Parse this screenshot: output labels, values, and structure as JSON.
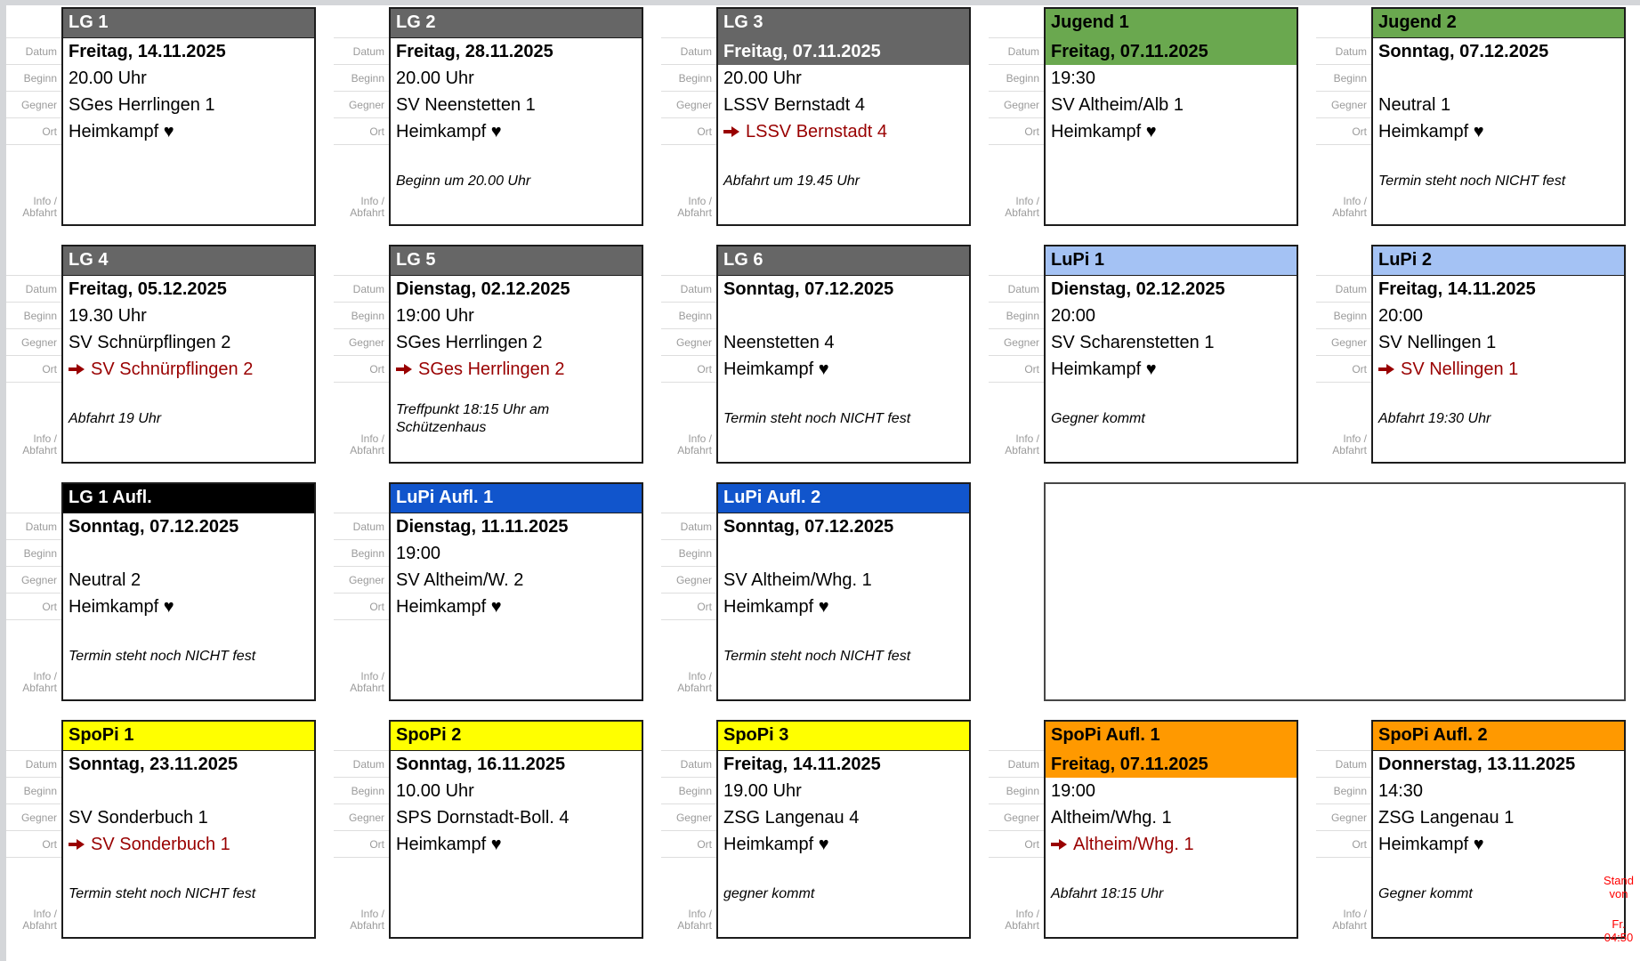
{
  "labels": {
    "datum": "Datum",
    "beginn": "Beginn",
    "gegner": "Gegner",
    "ort": "Ort",
    "info_line1": "Info /",
    "info_line2": "Abfahrt"
  },
  "icons": {
    "away_arrow": "➔",
    "home_heart": "♥"
  },
  "colors": {
    "lg_header": "#666666",
    "jugend_header": "#6aa84f",
    "lupi_header": "#a4c2f4",
    "lg_aufl_header": "#000000",
    "lupi_aufl_header": "#1155cc",
    "spopi_header": "#ffff00",
    "spopi_aufl_header": "#ff9900",
    "away_text": "#990000",
    "stand_note": "#ff0000"
  },
  "footer": {
    "stand_line": "Stand von",
    "day": "Fr.",
    "time": "04:50"
  },
  "cards": [
    {
      "row": 1,
      "col": 1,
      "team": "LG 1",
      "header_bg": "#666666",
      "header_color": "#ffffff",
      "today": false,
      "datum": "Freitag, 14.11.2025",
      "beginn": "20.00 Uhr",
      "gegner": "SGes Herrlingen 1",
      "ort": {
        "type": "home",
        "text": "Heimkampf ♥"
      },
      "info": ""
    },
    {
      "row": 1,
      "col": 2,
      "team": "LG 2",
      "header_bg": "#666666",
      "header_color": "#ffffff",
      "today": false,
      "datum": "Freitag, 28.11.2025",
      "beginn": "20.00 Uhr",
      "gegner": "SV Neenstetten 1",
      "ort": {
        "type": "home",
        "text": "Heimkampf ♥"
      },
      "info": "Beginn um 20.00 Uhr"
    },
    {
      "row": 1,
      "col": 3,
      "team": "LG 3",
      "header_bg": "#666666",
      "header_color": "#ffffff",
      "today": true,
      "datum": "Freitag, 07.11.2025",
      "beginn": "20.00 Uhr",
      "gegner": "LSSV Bernstadt 4",
      "ort": {
        "type": "away",
        "text": "LSSV Bernstadt 4"
      },
      "info": "Abfahrt um 19.45 Uhr"
    },
    {
      "row": 1,
      "col": 4,
      "team": "Jugend 1",
      "header_bg": "#6aa84f",
      "header_color": "#000000",
      "today": true,
      "datum": "Freitag, 07.11.2025",
      "beginn": "19:30",
      "gegner": "SV Altheim/Alb 1",
      "ort": {
        "type": "home",
        "text": "Heimkampf ♥"
      },
      "info": ""
    },
    {
      "row": 1,
      "col": 5,
      "team": "Jugend 2",
      "header_bg": "#6aa84f",
      "header_color": "#000000",
      "today": false,
      "datum": "Sonntag, 07.12.2025",
      "beginn": "",
      "gegner": "Neutral 1",
      "ort": {
        "type": "home",
        "text": "Heimkampf ♥"
      },
      "info": "Termin steht noch NICHT fest"
    },
    {
      "row": 2,
      "col": 1,
      "team": "LG 4",
      "header_bg": "#666666",
      "header_color": "#ffffff",
      "today": false,
      "datum": "Freitag, 05.12.2025",
      "beginn": "19.30 Uhr",
      "gegner": "SV Schnürpflingen 2",
      "ort": {
        "type": "away",
        "text": "SV Schnürpflingen 2"
      },
      "info": "Abfahrt 19 Uhr"
    },
    {
      "row": 2,
      "col": 2,
      "team": "LG 5",
      "header_bg": "#666666",
      "header_color": "#ffffff",
      "today": false,
      "datum": "Dienstag, 02.12.2025",
      "beginn": "19:00 Uhr",
      "gegner": "SGes Herrlingen 2",
      "ort": {
        "type": "away",
        "text": "SGes Herrlingen 2"
      },
      "info": "Treffpunkt 18:15 Uhr am Schützenhaus"
    },
    {
      "row": 2,
      "col": 3,
      "team": "LG 6",
      "header_bg": "#666666",
      "header_color": "#ffffff",
      "today": false,
      "datum": "Sonntag, 07.12.2025",
      "beginn": "",
      "gegner": "Neenstetten 4",
      "ort": {
        "type": "home",
        "text": "Heimkampf ♥"
      },
      "info": "Termin steht noch NICHT fest"
    },
    {
      "row": 2,
      "col": 4,
      "team": "LuPi 1",
      "header_bg": "#a4c2f4",
      "header_color": "#000000",
      "today": false,
      "datum": "Dienstag, 02.12.2025",
      "beginn": "20:00",
      "gegner": "SV Scharenstetten 1",
      "ort": {
        "type": "home",
        "text": "Heimkampf ♥"
      },
      "info": "Gegner kommt"
    },
    {
      "row": 2,
      "col": 5,
      "team": "LuPi 2",
      "header_bg": "#a4c2f4",
      "header_color": "#000000",
      "today": false,
      "datum": "Freitag, 14.11.2025",
      "beginn": "20:00",
      "gegner": "SV Nellingen 1",
      "ort": {
        "type": "away",
        "text": "SV Nellingen 1"
      },
      "info": "Abfahrt 19:30 Uhr"
    },
    {
      "row": 3,
      "col": 1,
      "team": "LG 1 Aufl.",
      "header_bg": "#000000",
      "header_color": "#ffffff",
      "today": false,
      "datum": "Sonntag, 07.12.2025",
      "beginn": "",
      "gegner": "Neutral 2",
      "ort": {
        "type": "home",
        "text": "Heimkampf ♥"
      },
      "info": "Termin steht noch NICHT fest"
    },
    {
      "row": 3,
      "col": 2,
      "team": "LuPi Aufl. 1",
      "header_bg": "#1155cc",
      "header_color": "#ffffff",
      "today": false,
      "datum": "Dienstag, 11.11.2025",
      "beginn": "19:00",
      "gegner": "SV Altheim/W. 2",
      "ort": {
        "type": "home",
        "text": "Heimkampf ♥"
      },
      "info": ""
    },
    {
      "row": 3,
      "col": 3,
      "team": "LuPi Aufl. 2",
      "header_bg": "#1155cc",
      "header_color": "#ffffff",
      "today": false,
      "datum": "Sonntag, 07.12.2025",
      "beginn": "",
      "gegner": "SV Altheim/Whg. 1",
      "ort": {
        "type": "home",
        "text": "Heimkampf ♥"
      },
      "info": "Termin steht noch NICHT fest"
    },
    {
      "row": 4,
      "col": 1,
      "team": "SpoPi 1",
      "header_bg": "#ffff00",
      "header_color": "#000000",
      "today": false,
      "datum": "Sonntag, 23.11.2025",
      "beginn": "",
      "gegner": "SV Sonderbuch 1",
      "ort": {
        "type": "away",
        "text": "SV Sonderbuch 1"
      },
      "info": "Termin steht noch NICHT fest"
    },
    {
      "row": 4,
      "col": 2,
      "team": "SpoPi 2",
      "header_bg": "#ffff00",
      "header_color": "#000000",
      "today": false,
      "datum": "Sonntag, 16.11.2025",
      "beginn": "10.00 Uhr",
      "gegner": "SPS Dornstadt-Boll. 4",
      "ort": {
        "type": "home",
        "text": "Heimkampf ♥"
      },
      "info": ""
    },
    {
      "row": 4,
      "col": 3,
      "team": "SpoPi 3",
      "header_bg": "#ffff00",
      "header_color": "#000000",
      "today": false,
      "datum": "Freitag, 14.11.2025",
      "beginn": "19.00 Uhr",
      "gegner": "ZSG Langenau 4",
      "ort": {
        "type": "home",
        "text": "Heimkampf ♥"
      },
      "info": "gegner kommt"
    },
    {
      "row": 4,
      "col": 4,
      "team": "SpoPi Aufl. 1",
      "header_bg": "#ff9900",
      "header_color": "#000000",
      "today": true,
      "datum": "Freitag, 07.11.2025",
      "beginn": "19:00",
      "gegner": "Altheim/Whg. 1",
      "ort": {
        "type": "away",
        "text": "Altheim/Whg. 1"
      },
      "info": "Abfahrt 18:15 Uhr"
    },
    {
      "row": 4,
      "col": 5,
      "team": "SpoPi Aufl. 2",
      "header_bg": "#ff9900",
      "header_color": "#000000",
      "today": false,
      "datum": "Donnerstag, 13.11.2025",
      "beginn": "14:30",
      "gegner": "ZSG Langenau 1",
      "ort": {
        "type": "home",
        "text": "Heimkampf ♥"
      },
      "info": "Gegner kommt"
    }
  ],
  "empty_slot": {
    "row": 3,
    "col_start": 4,
    "col_end": 5
  }
}
